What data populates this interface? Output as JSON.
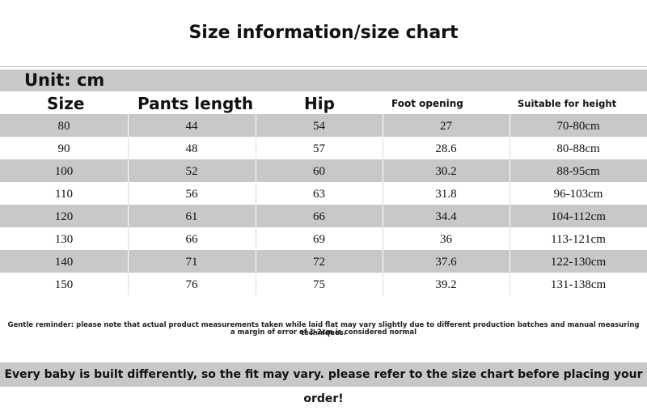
{
  "header": {
    "title": "Size information/size chart"
  },
  "table": {
    "unit": "Unit: cm",
    "columns": [
      "Size",
      "Pants length",
      "Hip",
      "Foot opening",
      "Suitable for height"
    ],
    "rows": [
      [
        "80",
        "44",
        "54",
        "27",
        "70-80cm"
      ],
      [
        "90",
        "48",
        "57",
        "28.6",
        "80-88cm"
      ],
      [
        "100",
        "52",
        "60",
        "30.2",
        "88-95cm"
      ],
      [
        "110",
        "56",
        "63",
        "31.8",
        "96-103cm"
      ],
      [
        "120",
        "61",
        "66",
        "34.4",
        "104-112cm"
      ],
      [
        "130",
        "66",
        "69",
        "36",
        "113-121cm"
      ],
      [
        "140",
        "71",
        "72",
        "37.6",
        "122-130cm"
      ],
      [
        "150",
        "76",
        "75",
        "39.2",
        "131-138cm"
      ]
    ]
  },
  "notes": [
    "Gentle reminder: please note that actual product measurements taken while laid flat may vary slightly due to different production batches and manual measuring techniques.",
    "a margin of error of 1-2cm is considered normal"
  ],
  "footer": "Every baby is built differently, so the fit may vary. please refer to the size chart before placing your order!"
}
